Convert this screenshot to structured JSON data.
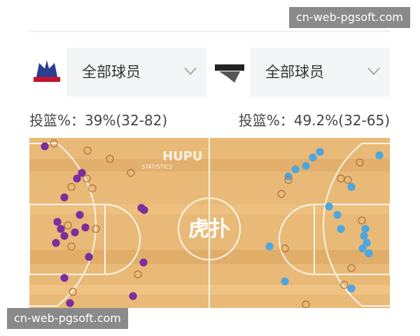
{
  "watermark": "cn-web-pgsoft.com",
  "teams": [
    {
      "filter": "全部球员",
      "stat": "投篮%：39%(32-82)"
    },
    {
      "filter": "全部球员",
      "stat": "投篮%：49.2%(32-65)"
    }
  ],
  "court": {
    "brand": "HUPU",
    "brand_sub": "STATISTICS",
    "center_logo": "虎扑"
  }
}
